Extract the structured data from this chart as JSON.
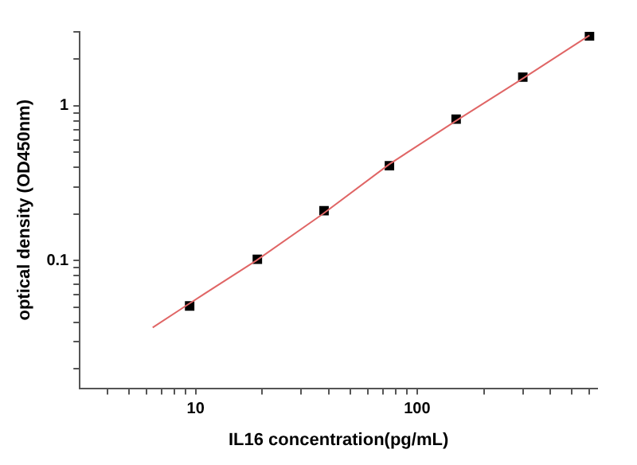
{
  "chart_data": {
    "type": "scatter",
    "xlabel": "IL16 concentration(pg/mL)",
    "ylabel": "optical density (OD450nm)",
    "log": "xy",
    "grid": false,
    "legend": false,
    "xlim": [
      3,
      650
    ],
    "ylim": [
      0.015,
      3
    ],
    "xticks": [
      {
        "value": 4,
        "label": null
      },
      {
        "value": 5,
        "label": null
      },
      {
        "value": 6,
        "label": null
      },
      {
        "value": 7,
        "label": null
      },
      {
        "value": 8,
        "label": null
      },
      {
        "value": 9,
        "label": null
      },
      10,
      {
        "value": 20,
        "label": null
      },
      {
        "value": 30,
        "label": null
      },
      {
        "value": 40,
        "label": null
      },
      {
        "value": 50,
        "label": null
      },
      {
        "value": 60,
        "label": null
      },
      {
        "value": 70,
        "label": null
      },
      {
        "value": 80,
        "label": null
      },
      {
        "value": 90,
        "label": null
      },
      100,
      {
        "value": 200,
        "label": null
      },
      {
        "value": 300,
        "label": null
      },
      {
        "value": 400,
        "label": null
      },
      {
        "value": 500,
        "label": null
      },
      {
        "value": 600,
        "label": null
      }
    ],
    "yticks": [
      {
        "value": 0.02,
        "label": null
      },
      {
        "value": 0.03,
        "label": null
      },
      {
        "value": 0.04,
        "label": null
      },
      {
        "value": 0.05,
        "label": null
      },
      {
        "value": 0.06,
        "label": null
      },
      {
        "value": 0.07,
        "label": null
      },
      {
        "value": 0.08,
        "label": null
      },
      {
        "value": 0.09,
        "label": null
      },
      0.1,
      {
        "value": 0.2,
        "label": null
      },
      {
        "value": 0.3,
        "label": null
      },
      {
        "value": 0.4,
        "label": null
      },
      {
        "value": 0.5,
        "label": null
      },
      {
        "value": 0.6,
        "label": null
      },
      {
        "value": 0.7,
        "label": null
      },
      {
        "value": 0.8,
        "label": null
      },
      {
        "value": 0.9,
        "label": null
      },
      1,
      {
        "value": 2,
        "label": null
      },
      {
        "value": 3,
        "label": null
      }
    ],
    "series": [
      {
        "type": "line",
        "marker": "none",
        "color": "#e06666",
        "x": [
          6.4,
          9.4,
          18.75,
          37.5,
          75,
          150,
          300,
          600
        ],
        "values": [
          0.037,
          0.053,
          0.1,
          0.2,
          0.42,
          0.8,
          1.5,
          2.85
        ]
      },
      {
        "type": "scatter",
        "marker": "square",
        "color": "#000000",
        "x": [
          9.4,
          19,
          38,
          75,
          150,
          300,
          600
        ],
        "values": [
          0.051,
          0.102,
          0.21,
          0.41,
          0.82,
          1.53,
          2.83
        ]
      }
    ]
  }
}
